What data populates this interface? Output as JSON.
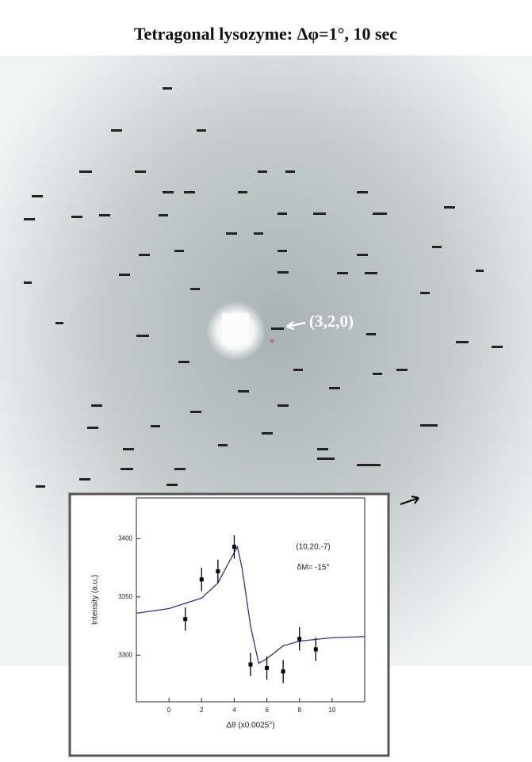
{
  "title": "Tetragonal lysozyme:  Δφ=1°, 10 sec",
  "reflection_label": "(3,2,0)",
  "chart_data": {
    "type": "scatter",
    "xlabel": "Δθ (x0.0025°)",
    "ylabel": "Intensity (a.u.)",
    "annotations": [
      "(10,20,-7)",
      "δM= -15°"
    ],
    "xlim": [
      -2,
      12
    ],
    "xticks": [
      0,
      2,
      4,
      6,
      8,
      10
    ],
    "ylim": [
      3260,
      3435
    ],
    "yticks": [
      3300,
      3350,
      3400
    ],
    "x": [
      1,
      2,
      3,
      4,
      5,
      6,
      7,
      8,
      9
    ],
    "values": [
      3331,
      3365,
      3372,
      3393,
      3292,
      3289,
      3286,
      3314,
      3305
    ],
    "errors": [
      10,
      10,
      10,
      10,
      10,
      10,
      10,
      10,
      10
    ],
    "color": "#000000",
    "fit": {
      "type": "line",
      "color": "#333388",
      "x": [
        -2,
        0,
        2,
        3,
        3.8,
        4.2,
        4.5,
        5,
        5.5,
        6,
        7,
        8,
        10,
        12
      ],
      "values": [
        3336,
        3340,
        3349,
        3362,
        3383,
        3393,
        3373,
        3325,
        3293,
        3297,
        3308,
        3312,
        3315,
        3316
      ]
    }
  }
}
